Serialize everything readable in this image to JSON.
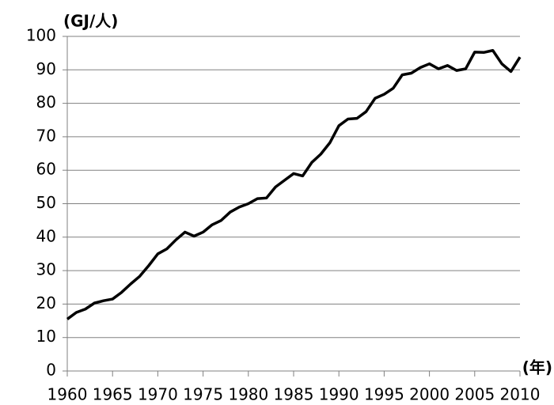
{
  "chart_data": {
    "type": "line",
    "ylabel": "(GJ/人)",
    "xlabel": "(年)",
    "x": [
      1960,
      1961,
      1962,
      1963,
      1964,
      1965,
      1966,
      1967,
      1968,
      1969,
      1970,
      1971,
      1972,
      1973,
      1974,
      1975,
      1976,
      1977,
      1978,
      1979,
      1980,
      1981,
      1982,
      1983,
      1984,
      1985,
      1986,
      1987,
      1988,
      1989,
      1990,
      1991,
      1992,
      1993,
      1994,
      1995,
      1996,
      1997,
      1998,
      1999,
      2000,
      2001,
      2002,
      2003,
      2004,
      2005,
      2006,
      2007,
      2008,
      2009,
      2010
    ],
    "series": [
      {
        "color": "#000000",
        "values": [
          15.5,
          17.5,
          18.5,
          20.3,
          21,
          21.5,
          23.5,
          26,
          28.3,
          31.5,
          35,
          36.5,
          39.2,
          41.5,
          40.3,
          41.5,
          43.7,
          45,
          47.5,
          49,
          50,
          51.5,
          51.7,
          55,
          57,
          59,
          58.3,
          62.3,
          64.8,
          68.2,
          73.3,
          75.3,
          75.5,
          77.5,
          81.5,
          82.7,
          84.5,
          88.5,
          89,
          90.7,
          91.8,
          90.3,
          91.3,
          89.8,
          90.3,
          95.3,
          95.2,
          95.8,
          91.8,
          89.5,
          93.8
        ]
      }
    ],
    "xlim": [
      1960,
      2010
    ],
    "xticks": [
      1960,
      1965,
      1970,
      1975,
      1980,
      1985,
      1990,
      1995,
      2000,
      2005,
      2010
    ],
    "ylim": [
      0,
      100
    ],
    "yticks": [
      0,
      10,
      20,
      30,
      40,
      50,
      60,
      70,
      80,
      90,
      100
    ],
    "grid": true
  }
}
